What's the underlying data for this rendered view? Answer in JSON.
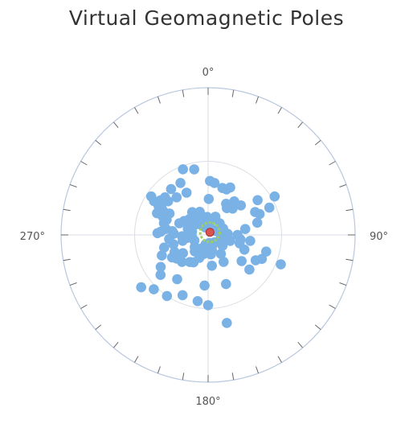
{
  "chart_data": {
    "type": "scatter",
    "title": "Virtual Geomagnetic Poles",
    "projection": "polar",
    "angle_labels": [
      "0°",
      "90°",
      "180°",
      "270°"
    ],
    "radial_range": [
      0,
      90
    ],
    "colors": {
      "points": "#7bb2e6",
      "axis": "#b9c7df",
      "grid": "#dadde3",
      "mean": "#d9534f",
      "confidence": "#9bd15a"
    },
    "series": [
      {
        "points": [
          [
            339,
            43
          ],
          [
            348,
            41
          ],
          [
            304,
            42
          ],
          [
            302,
            39
          ],
          [
            300,
            35
          ],
          [
            306,
            36
          ],
          [
            311,
            35
          ],
          [
            310,
            32
          ],
          [
            321,
            36
          ],
          [
            332,
            36
          ],
          [
            333,
            29
          ],
          [
            320,
            30
          ],
          [
            304,
            34
          ],
          [
            293,
            34
          ],
          [
            292,
            30
          ],
          [
            298,
            31
          ],
          [
            290,
            27
          ],
          [
            299,
            27
          ],
          [
            285,
            28
          ],
          [
            274,
            29
          ],
          [
            278,
            26
          ],
          [
            276,
            22
          ],
          [
            272,
            21
          ],
          [
            292,
            19
          ],
          [
            300,
            17
          ],
          [
            310,
            15
          ],
          [
            325,
            17
          ],
          [
            330,
            11
          ],
          [
            340,
            15
          ],
          [
            350,
            11
          ],
          [
            357,
            11
          ],
          [
            327,
            7
          ],
          [
            338,
            5
          ],
          [
            352,
            6
          ],
          [
            1,
            22
          ],
          [
            2,
            33
          ],
          [
            7,
            32
          ],
          [
            17,
            30
          ],
          [
            22,
            30
          ],
          [
            25,
            32
          ],
          [
            30,
            22
          ],
          [
            35,
            20
          ],
          [
            38,
            26
          ],
          [
            43,
            22
          ],
          [
            48,
            27
          ],
          [
            55,
            37
          ],
          [
            64,
            32
          ],
          [
            66,
            41
          ],
          [
            68,
            34
          ],
          [
            60,
            47
          ],
          [
            76,
            31
          ],
          [
            81,
            23
          ],
          [
            90,
            18
          ],
          [
            98,
            26
          ],
          [
            98,
            20
          ],
          [
            105,
            20
          ],
          [
            112,
            24
          ],
          [
            114,
            36
          ],
          [
            112,
            48
          ],
          [
            118,
            33
          ],
          [
            128,
            26
          ],
          [
            130,
            33
          ],
          [
            106,
            37
          ],
          [
            150,
            19
          ],
          [
            160,
            32
          ],
          [
            173,
            19
          ],
          [
            184,
            31
          ],
          [
            180,
            43
          ],
          [
            168,
            55
          ],
          [
            189,
            41
          ],
          [
            203,
            40
          ],
          [
            215,
            33
          ],
          [
            214,
            45
          ],
          [
            224,
            23
          ],
          [
            233,
            24
          ],
          [
            238,
            26
          ],
          [
            214,
            20
          ],
          [
            208,
            19
          ],
          [
            201,
            15
          ],
          [
            193,
            12
          ],
          [
            182,
            10
          ],
          [
            180,
            7
          ],
          [
            172,
            12
          ],
          [
            166,
            10
          ],
          [
            234,
            19
          ],
          [
            236,
            35
          ],
          [
            230,
            38
          ],
          [
            225,
            47
          ],
          [
            232,
            52
          ],
          [
            243,
            23
          ],
          [
            246,
            31
          ],
          [
            255,
            22
          ],
          [
            257,
            16
          ],
          [
            254,
            28
          ],
          [
            264,
            24
          ],
          [
            272,
            31
          ],
          [
            267,
            16
          ],
          [
            265,
            10
          ],
          [
            278,
            12
          ],
          [
            281,
            10
          ],
          [
            317,
            14
          ],
          [
            333,
            7
          ],
          [
            356,
            8
          ],
          [
            12,
            5
          ],
          [
            62,
            5
          ],
          [
            58,
            8
          ],
          [
            101,
            8
          ],
          [
            110,
            10
          ],
          [
            127,
            11
          ],
          [
            146,
            14
          ],
          [
            158,
            7
          ],
          [
            172,
            5
          ],
          [
            195,
            6
          ],
          [
            205,
            9
          ],
          [
            219,
            13
          ],
          [
            228,
            11
          ],
          [
            248,
            9
          ],
          [
            262,
            13
          ],
          [
            287,
            13
          ],
          [
            309,
            10
          ],
          [
            333,
            11
          ],
          [
            12,
            10
          ],
          [
            22,
            12
          ],
          [
            45,
            10
          ],
          [
            67,
            10
          ],
          [
            87,
            12
          ],
          [
            105,
            14
          ],
          [
            140,
            6
          ]
        ]
      }
    ],
    "mean_direction": {
      "angle": 35,
      "radius": 2
    },
    "confidence_radius": 4
  }
}
